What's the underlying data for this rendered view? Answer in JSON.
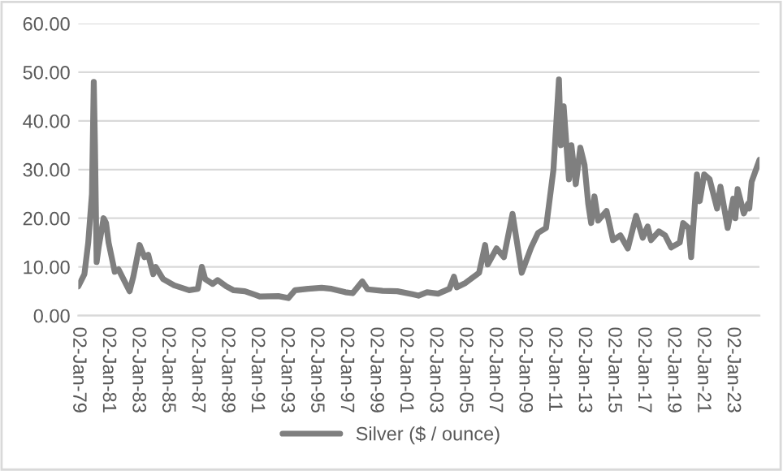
{
  "chart_data": {
    "type": "line",
    "x": [
      "1979-01-02",
      "1979-06-01",
      "1979-09-03",
      "1979-12-03",
      "1980-01-17",
      "1980-02-15",
      "1980-03-27",
      "1980-05-15",
      "1980-09-15",
      "1980-11-14",
      "1981-01-15",
      "1981-06-15",
      "1981-09-15",
      "1982-06-15",
      "1982-09-15",
      "1983-02-15",
      "1983-06-15",
      "1983-09-15",
      "1984-01-16",
      "1984-03-15",
      "1984-09-14",
      "1985-06-14",
      "1986-06-16",
      "1987-01-15",
      "1987-04-24",
      "1987-07-15",
      "1987-10-15",
      "1988-01-15",
      "1988-05-16",
      "1988-12-15",
      "1989-06-15",
      "1990-03-15",
      "1990-12-14",
      "1991-03-15",
      "1992-06-15",
      "1993-02-15",
      "1993-07-30",
      "1994-06-15",
      "1995-05-15",
      "1996-01-15",
      "1996-12-16",
      "1997-06-16",
      "1998-02-05",
      "1998-06-15",
      "1999-06-15",
      "2000-06-15",
      "2001-06-15",
      "2001-11-15",
      "2002-06-14",
      "2003-03-14",
      "2003-12-15",
      "2004-04-05",
      "2004-06-15",
      "2005-01-14",
      "2005-12-15",
      "2006-05-11",
      "2006-07-14",
      "2007-02-15",
      "2007-08-15",
      "2008-03-14",
      "2008-10-27",
      "2009-06-15",
      "2009-12-02",
      "2010-06-15",
      "2010-12-15",
      "2011-04-28",
      "2011-06-15",
      "2011-08-22",
      "2011-12-29",
      "2012-02-28",
      "2012-06-15",
      "2012-10-04",
      "2013-01-15",
      "2013-04-16",
      "2013-06-27",
      "2013-09-16",
      "2013-12-16",
      "2014-07-10",
      "2014-12-15",
      "2015-06-15",
      "2015-12-15",
      "2016-07-06",
      "2016-12-15",
      "2017-04-14",
      "2017-07-07",
      "2018-01-15",
      "2018-06-15",
      "2018-11-14",
      "2019-06-14",
      "2019-09-04",
      "2020-01-15",
      "2020-03-18",
      "2020-08-07",
      "2020-10-15",
      "2021-02-01",
      "2021-06-15",
      "2021-12-15",
      "2022-03-08",
      "2022-09-01",
      "2023-01-16",
      "2023-03-08",
      "2023-05-04",
      "2023-10-03",
      "2024-01-15",
      "2024-02-14",
      "2024-04-12",
      "2024-10-22"
    ],
    "series": [
      {
        "name": "Silver ($ / ounce)",
        "color": "#7f7f7f",
        "values": [
          6.0,
          8.5,
          15,
          25,
          48,
          35,
          11,
          14,
          20,
          19,
          15,
          9,
          9.5,
          5,
          8,
          14.5,
          12,
          12.5,
          8.5,
          10,
          7.5,
          6.2,
          5.2,
          5.5,
          10,
          7.5,
          7,
          6.5,
          7.3,
          6,
          5.2,
          5,
          4.2,
          3.9,
          4,
          3.6,
          5.2,
          5.5,
          5.7,
          5.5,
          4.8,
          4.6,
          7,
          5.4,
          5.1,
          5,
          4.4,
          4.1,
          4.8,
          4.5,
          5.5,
          8,
          5.8,
          6.7,
          8.8,
          14.5,
          10.5,
          13.8,
          12,
          20.9,
          8.8,
          14,
          17,
          18,
          30,
          48.5,
          35,
          43,
          28,
          35,
          27,
          34.5,
          31,
          23,
          19,
          24.5,
          19.5,
          21.5,
          15.5,
          16.5,
          13.8,
          20.5,
          16,
          18.3,
          15.5,
          17.3,
          16.5,
          14,
          15,
          19,
          18,
          12,
          29,
          23.5,
          29,
          28,
          22,
          26.5,
          18,
          24,
          20,
          26,
          21,
          23,
          22,
          27.5,
          32
        ]
      }
    ],
    "xlim": [
      "1979-01-02",
      "2024-10-22"
    ],
    "xticks": [
      {
        "value": "1979-01-02",
        "label": "02-Jan-79"
      },
      {
        "value": "1981-01-02",
        "label": "02-Jan-81"
      },
      {
        "value": "1983-01-02",
        "label": "02-Jan-83"
      },
      {
        "value": "1985-01-02",
        "label": "02-Jan-85"
      },
      {
        "value": "1987-01-02",
        "label": "02-Jan-87"
      },
      {
        "value": "1989-01-02",
        "label": "02-Jan-89"
      },
      {
        "value": "1991-01-02",
        "label": "02-Jan-91"
      },
      {
        "value": "1993-01-02",
        "label": "02-Jan-93"
      },
      {
        "value": "1995-01-02",
        "label": "02-Jan-95"
      },
      {
        "value": "1997-01-02",
        "label": "02-Jan-97"
      },
      {
        "value": "1999-01-02",
        "label": "02-Jan-99"
      },
      {
        "value": "2001-01-02",
        "label": "02-Jan-01"
      },
      {
        "value": "2003-01-02",
        "label": "02-Jan-03"
      },
      {
        "value": "2005-01-02",
        "label": "02-Jan-05"
      },
      {
        "value": "2007-01-02",
        "label": "02-Jan-07"
      },
      {
        "value": "2009-01-02",
        "label": "02-Jan-09"
      },
      {
        "value": "2011-01-02",
        "label": "02-Jan-11"
      },
      {
        "value": "2013-01-02",
        "label": "02-Jan-13"
      },
      {
        "value": "2015-01-02",
        "label": "02-Jan-15"
      },
      {
        "value": "2017-01-02",
        "label": "02-Jan-17"
      },
      {
        "value": "2019-01-02",
        "label": "02-Jan-19"
      },
      {
        "value": "2021-01-02",
        "label": "02-Jan-21"
      },
      {
        "value": "2023-01-02",
        "label": "02-Jan-23"
      }
    ],
    "ylim": [
      0,
      60
    ],
    "yticks": [
      {
        "value": 0,
        "label": "0.00"
      },
      {
        "value": 10,
        "label": "10.00"
      },
      {
        "value": 20,
        "label": "20.00"
      },
      {
        "value": 30,
        "label": "30.00"
      },
      {
        "value": 40,
        "label": "40.00"
      },
      {
        "value": 50,
        "label": "50.00"
      },
      {
        "value": 60,
        "label": "60.00"
      }
    ],
    "grid": "y",
    "legend": "bottom",
    "line_style": "solid"
  }
}
